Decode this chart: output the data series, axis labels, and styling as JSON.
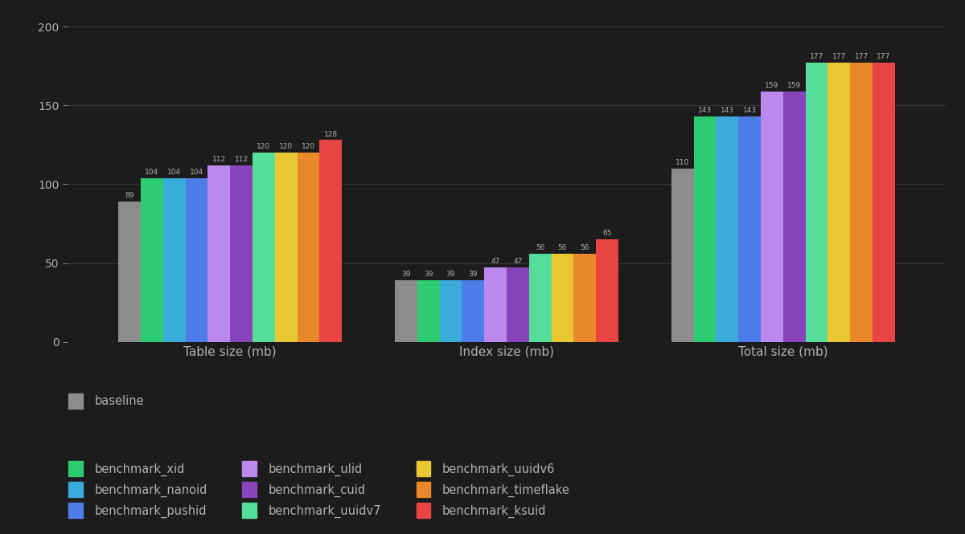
{
  "background_color": "#1c1c1c",
  "text_color": "#b0b0b0",
  "grid_color": "#3a3a3a",
  "categories": [
    "Table size (mb)",
    "Index size (mb)",
    "Total size (mb)"
  ],
  "series": [
    {
      "label": "baseline",
      "color": "#8c8c8c",
      "values": [
        89,
        39,
        110
      ]
    },
    {
      "label": "benchmark_xid",
      "color": "#2ecc71",
      "values": [
        104,
        39,
        143
      ]
    },
    {
      "label": "benchmark_nanoid",
      "color": "#3aacdc",
      "values": [
        104,
        39,
        143
      ]
    },
    {
      "label": "benchmark_pushid",
      "color": "#4e7ce8",
      "values": [
        104,
        39,
        143
      ]
    },
    {
      "label": "benchmark_ulid",
      "color": "#bb88ee",
      "values": [
        112,
        47,
        159
      ]
    },
    {
      "label": "benchmark_cuid",
      "color": "#8844bb",
      "values": [
        112,
        47,
        159
      ]
    },
    {
      "label": "benchmark_uuidv7",
      "color": "#55dd99",
      "values": [
        120,
        56,
        177
      ]
    },
    {
      "label": "benchmark_uuidv6",
      "color": "#e8c832",
      "values": [
        120,
        56,
        177
      ]
    },
    {
      "label": "benchmark_timeflake",
      "color": "#e8882a",
      "values": [
        120,
        56,
        177
      ]
    },
    {
      "label": "benchmark_ksuid",
      "color": "#e84444",
      "values": [
        128,
        65,
        177
      ]
    }
  ],
  "ylim": [
    0,
    200
  ],
  "yticks": [
    0,
    50,
    100,
    150,
    200
  ],
  "bar_width": 0.055,
  "group_centers": [
    0.32,
    1.0,
    1.68
  ],
  "xlim": [
    -0.08,
    2.08
  ],
  "value_fontsize": 6.5,
  "label_fontsize": 11,
  "tick_fontsize": 10,
  "legend_fontsize": 10.5
}
